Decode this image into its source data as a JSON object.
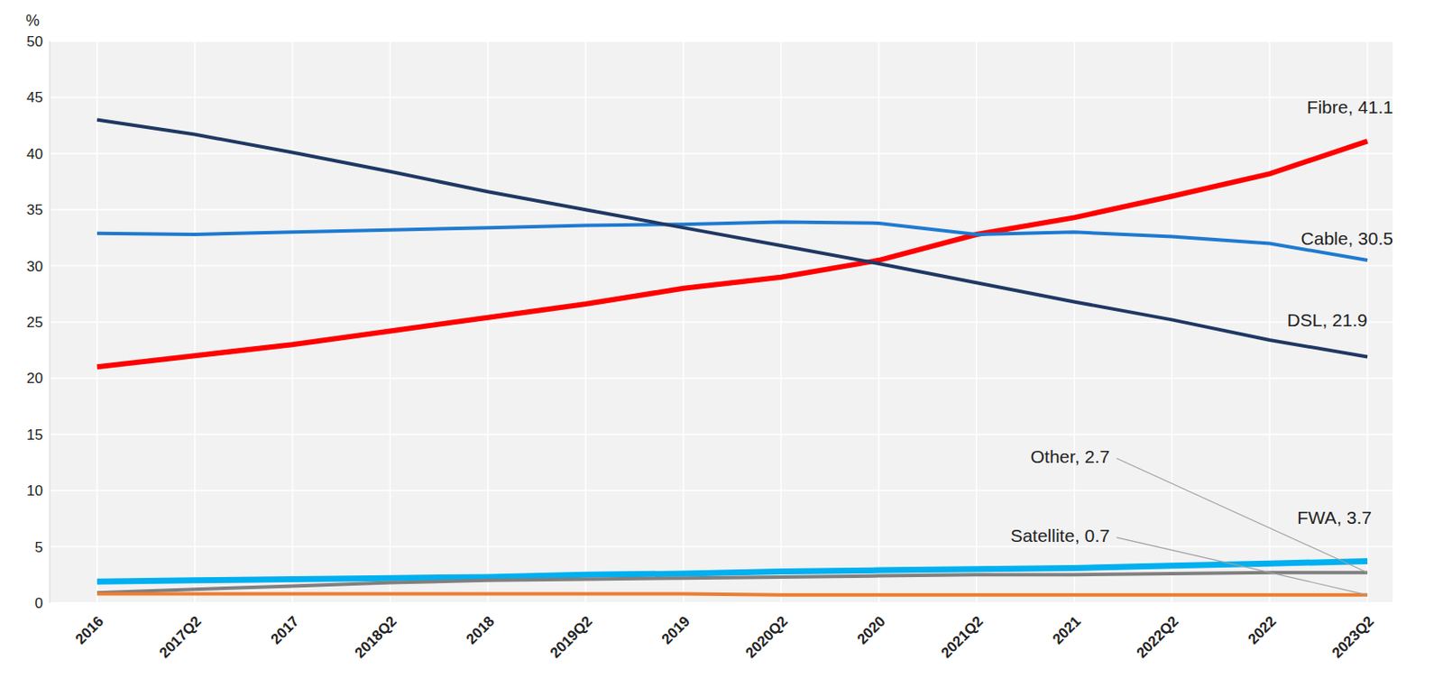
{
  "chart_data": {
    "type": "line",
    "y_label": "%",
    "categories": [
      "2016",
      "2017Q2",
      "2017",
      "2018Q2",
      "2018",
      "2019Q2",
      "2019",
      "2020Q2",
      "2020",
      "2021Q2",
      "2021",
      "2022Q2",
      "2022",
      "2023Q2"
    ],
    "ylim": [
      0,
      50
    ],
    "yticks": [
      0,
      5,
      10,
      15,
      20,
      25,
      30,
      35,
      40,
      45,
      50
    ],
    "grid": true,
    "series": [
      {
        "name": "Fibre",
        "label": "Fibre, 41.1",
        "color": "#ff0000",
        "values": [
          21,
          22,
          23,
          24.2,
          25.4,
          26.6,
          28,
          29,
          30.5,
          32.8,
          34.3,
          36.2,
          38.2,
          41.1
        ]
      },
      {
        "name": "Cable",
        "label": "Cable, 30.5",
        "color": "#1f7ad1",
        "values": [
          32.9,
          32.8,
          33,
          33.2,
          33.4,
          33.6,
          33.7,
          33.9,
          33.8,
          32.8,
          33,
          32.6,
          32,
          30.5
        ]
      },
      {
        "name": "DSL",
        "label": "DSL, 21.9",
        "color": "#1f3864",
        "values": [
          43,
          41.7,
          40.1,
          38.4,
          36.6,
          35,
          33.4,
          31.8,
          30.2,
          28.5,
          26.8,
          25.2,
          23.4,
          21.9
        ]
      },
      {
        "name": "FWA",
        "label": "FWA, 3.7",
        "color": "#00b0f0",
        "values": [
          1.9,
          2,
          2.1,
          2.2,
          2.3,
          2.5,
          2.6,
          2.8,
          2.9,
          3,
          3.1,
          3.3,
          3.5,
          3.7
        ]
      },
      {
        "name": "Other",
        "label": "Other, 2.7",
        "color": "#808080",
        "values": [
          0.9,
          1.2,
          1.5,
          1.8,
          2,
          2.1,
          2.2,
          2.3,
          2.4,
          2.5,
          2.5,
          2.6,
          2.7,
          2.7
        ]
      },
      {
        "name": "Satellite",
        "label": "Satellite, 0.7",
        "color": "#ed7d31",
        "values": [
          0.8,
          0.8,
          0.8,
          0.8,
          0.8,
          0.8,
          0.8,
          0.7,
          0.7,
          0.7,
          0.7,
          0.7,
          0.7,
          0.7
        ]
      }
    ]
  }
}
